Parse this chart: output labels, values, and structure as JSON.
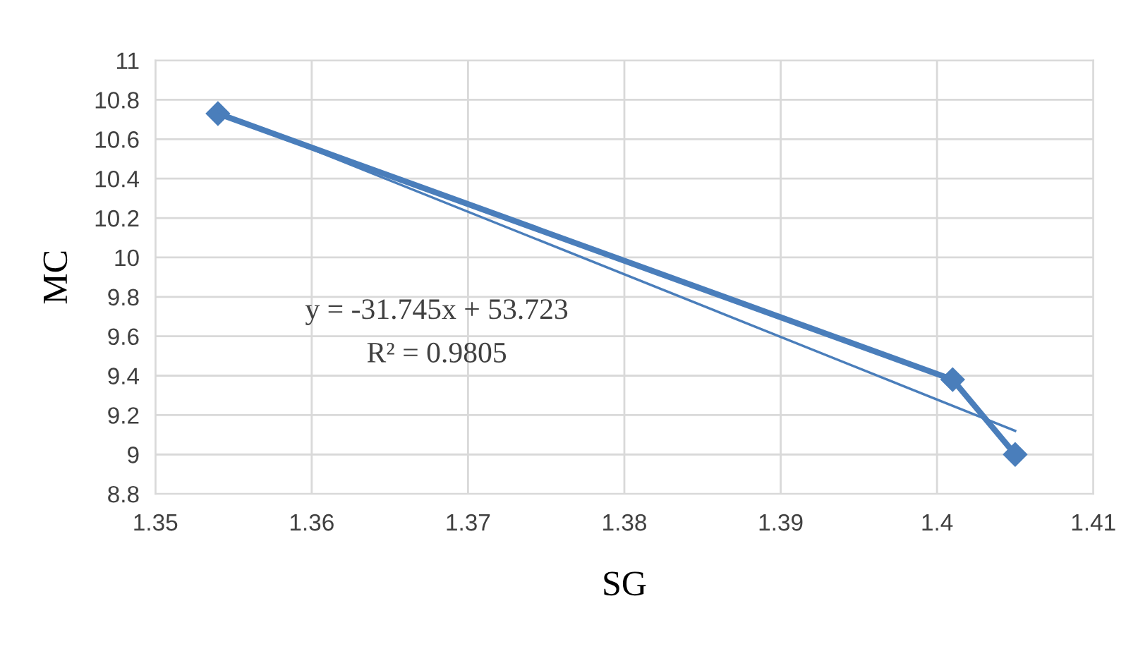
{
  "chart_data": {
    "type": "line",
    "xlabel": "SG",
    "ylabel": "MC",
    "x": [
      1.354,
      1.401,
      1.405
    ],
    "series": [
      {
        "color": "#4a7ebb",
        "values": [
          10.73,
          9.38,
          9.0
        ],
        "marker": "diamond"
      },
      {
        "type": "line",
        "color": "#4a7ebb",
        "x": [
          1.354,
          1.405
        ],
        "values": [
          10.74,
          9.12
        ],
        "marker": "none"
      }
    ],
    "annotations": [
      "y = -31.745x + 53.723",
      "R² = 0.9805"
    ],
    "xlim": [
      1.35,
      1.41
    ],
    "xticks": [
      1.35,
      1.36,
      1.37,
      1.38,
      1.39,
      1.4,
      1.41
    ],
    "ylim": [
      8.8,
      11
    ],
    "yticks": [
      8.8,
      9,
      9.2,
      9.4,
      9.6,
      9.8,
      10,
      10.2,
      10.4,
      10.6,
      10.8,
      11
    ],
    "grid": true,
    "legend": false
  }
}
